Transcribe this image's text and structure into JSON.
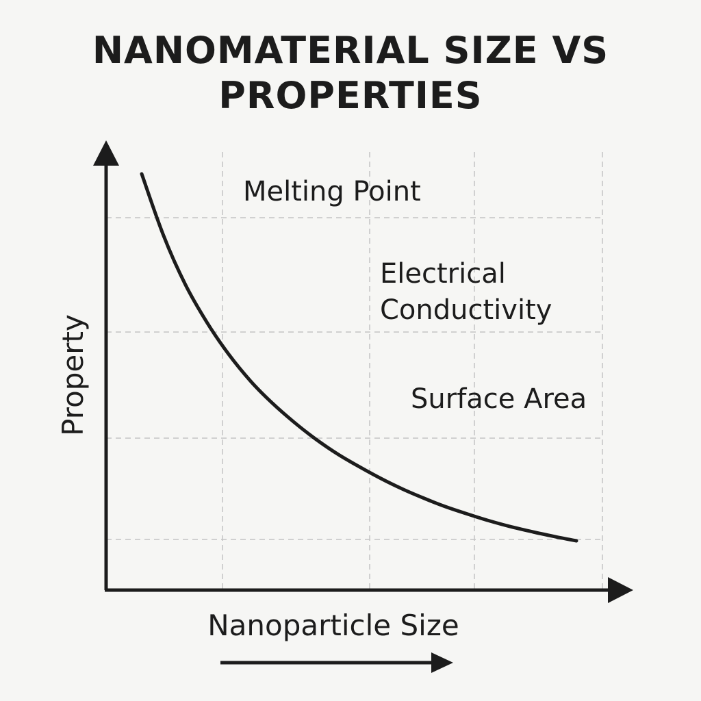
{
  "chart_data": {
    "type": "line",
    "title_lines": [
      "NANOMATERIAL SIZE VS",
      "PROPERTIES"
    ],
    "xlabel": "Nanoparticle Size",
    "ylabel": "Property",
    "grid": true,
    "series": [
      {
        "x": [
          0.0,
          0.5,
          1.0,
          1.5,
          2.0,
          2.5,
          3.0,
          3.5,
          4.0,
          4.5,
          5.0,
          5.5,
          6.0,
          6.5,
          7.0,
          7.5,
          8.0,
          8.5,
          9.0,
          9.5,
          10.0
        ],
        "y": [
          9.6,
          8.15,
          7.0,
          6.1,
          5.35,
          4.72,
          4.2,
          3.75,
          3.35,
          3.0,
          2.7,
          2.42,
          2.17,
          1.95,
          1.75,
          1.58,
          1.42,
          1.28,
          1.16,
          1.05,
          0.95
        ]
      }
    ],
    "annotations": [
      {
        "id": "melting-point",
        "lines": [
          "Melting Point"
        ]
      },
      {
        "id": "electrical-conductivity",
        "lines": [
          "Electrical",
          "Conductivity"
        ]
      },
      {
        "id": "surface-area",
        "lines": [
          "Surface Area"
        ]
      }
    ]
  },
  "colors": {
    "background": "#f6f6f4",
    "ink": "#1c1c1c",
    "grid": "#c4c4c4"
  }
}
